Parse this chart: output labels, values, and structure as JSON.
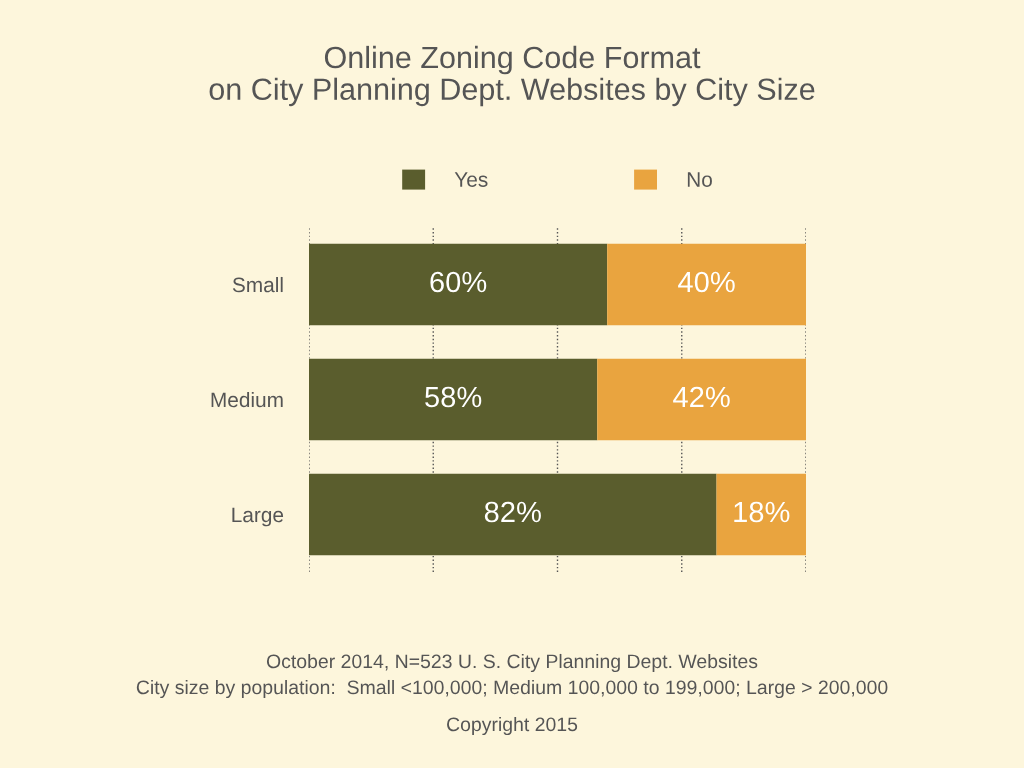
{
  "chart_data": {
    "type": "bar",
    "orientation": "horizontal",
    "stacked": true,
    "title": "Online Zoning Code Format\non City Planning Dept. Websites by City Size",
    "categories": [
      "Small",
      "Medium",
      "Large"
    ],
    "series": [
      {
        "name": "Yes",
        "color": "#5a5d2d",
        "values": [
          60,
          58,
          82
        ],
        "value_labels": [
          "60%",
          "58%",
          "82%"
        ]
      },
      {
        "name": "No",
        "color": "#e9a43f",
        "values": [
          40,
          42,
          18
        ],
        "value_labels": [
          "40%",
          "42%",
          "18%"
        ]
      }
    ],
    "xlim": [
      0,
      100
    ],
    "xticks": [
      {
        "value": 0,
        "label": null
      },
      {
        "value": 25,
        "label": null
      },
      {
        "value": 50,
        "label": null
      },
      {
        "value": 75,
        "label": null
      },
      {
        "value": 100,
        "label": null
      }
    ],
    "tick_labels": "y",
    "grid": "x",
    "legend": "top",
    "annotations": [
      "October 2014, N=523 U. S. City Planning Dept. Websites",
      "City size by population:  Small <100,000; Medium 100,000 to 199,000; Large > 200,000",
      "Copyright 2015"
    ]
  }
}
